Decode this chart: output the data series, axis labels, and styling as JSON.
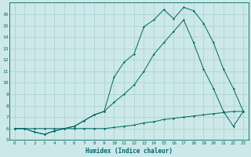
{
  "xlabel": "Humidex (Indice chaleur)",
  "bg_color": "#cce8e8",
  "grid_color": "#aacfcf",
  "line_color": "#006666",
  "xlim": [
    -0.5,
    23.5
  ],
  "ylim": [
    5,
    17
  ],
  "xticks": [
    0,
    1,
    2,
    3,
    4,
    5,
    6,
    7,
    8,
    9,
    10,
    11,
    12,
    13,
    14,
    15,
    16,
    17,
    18,
    19,
    20,
    21,
    22,
    23
  ],
  "yticks": [
    5,
    6,
    7,
    8,
    9,
    10,
    11,
    12,
    13,
    14,
    15,
    16
  ],
  "series1_x": [
    0,
    1,
    2,
    3,
    4,
    5,
    6,
    7,
    8,
    9,
    10,
    11,
    12,
    13,
    14,
    15,
    16,
    17,
    18,
    19,
    20,
    21,
    22,
    23
  ],
  "series1_y": [
    6,
    6,
    6,
    6,
    6,
    6,
    6,
    6,
    6,
    6,
    6.1,
    6.2,
    6.3,
    6.5,
    6.6,
    6.8,
    6.9,
    7.0,
    7.1,
    7.2,
    7.3,
    7.4,
    7.5,
    7.5
  ],
  "series2_x": [
    0,
    1,
    2,
    3,
    4,
    5,
    6,
    7,
    8,
    9,
    10,
    11,
    12,
    13,
    14,
    15,
    16,
    17,
    18,
    19,
    20,
    21,
    22,
    23
  ],
  "series2_y": [
    6,
    6,
    5.7,
    5.5,
    5.8,
    6,
    6.2,
    6.7,
    7.2,
    7.5,
    8.3,
    9.0,
    9.8,
    11.0,
    12.5,
    13.5,
    14.5,
    15.5,
    13.5,
    11.2,
    9.5,
    7.5,
    6.2,
    7.5
  ],
  "series3_x": [
    0,
    1,
    2,
    3,
    4,
    5,
    6,
    7,
    8,
    9,
    10,
    11,
    12,
    13,
    14,
    15,
    16,
    17,
    18,
    19,
    20,
    21,
    22,
    23
  ],
  "series3_y": [
    6,
    6,
    5.7,
    5.5,
    5.8,
    6,
    6.2,
    6.7,
    7.2,
    7.5,
    10.5,
    11.8,
    12.5,
    14.9,
    15.5,
    16.4,
    15.6,
    16.6,
    16.3,
    15.2,
    13.5,
    11.2,
    9.5,
    7.5
  ]
}
